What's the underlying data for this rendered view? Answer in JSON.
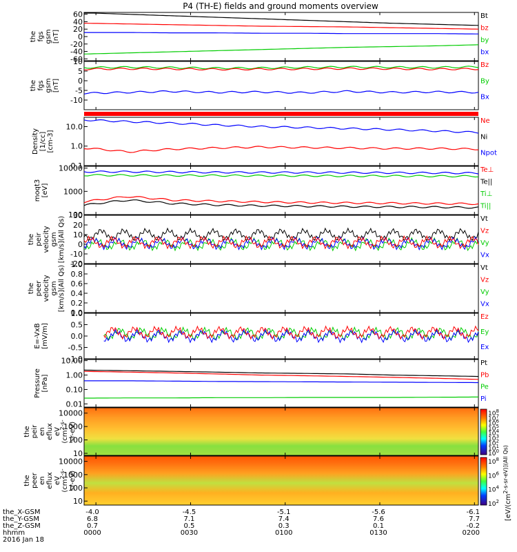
{
  "title": "P4 (TH-E) fields and ground moments overview",
  "colors": {
    "black": "#000000",
    "red": "#ff0000",
    "green": "#00cc00",
    "blue": "#0000ff"
  },
  "chart_data": [
    {
      "type": "line",
      "ylabel": [
        "the",
        "fgs",
        "gsm",
        "[nT]"
      ],
      "yticks": [
        "60",
        "40",
        "20",
        "0",
        "-20",
        "-40",
        "-60"
      ],
      "ylim": [
        -65,
        65
      ],
      "legend": [
        {
          "name": "Bt",
          "color": "black"
        },
        {
          "name": "bz",
          "color": "red"
        },
        {
          "name": "by",
          "color": "green"
        },
        {
          "name": "bx",
          "color": "blue"
        }
      ],
      "series": [
        {
          "name": "Bt",
          "color": "black",
          "values": [
            64,
            60,
            56,
            52,
            48,
            44,
            40,
            36,
            33,
            30
          ]
        },
        {
          "name": "bz",
          "color": "red",
          "values": [
            36,
            34,
            32,
            30,
            28,
            27,
            26,
            24,
            22,
            20
          ]
        },
        {
          "name": "bx",
          "color": "blue",
          "values": [
            11,
            11,
            10,
            10,
            9,
            9,
            8,
            8,
            8,
            7
          ]
        },
        {
          "name": "by",
          "color": "green",
          "values": [
            -47,
            -44,
            -41,
            -38,
            -35,
            -32,
            -29,
            -27,
            -25,
            -22
          ]
        }
      ]
    },
    {
      "type": "line",
      "ylabel": [
        "the",
        "fgs",
        "gsm",
        "[nT]"
      ],
      "yticks": [
        "10",
        "5",
        "0",
        "-5",
        "-10"
      ],
      "ylim": [
        -15,
        10
      ],
      "legend": [
        {
          "name": "Bz",
          "color": "red"
        },
        {
          "name": "By",
          "color": "green"
        },
        {
          "name": "Bx",
          "color": "blue"
        }
      ],
      "series": [
        {
          "name": "By",
          "color": "green",
          "values": [
            6.8,
            7.0,
            6.8,
            6.5,
            6.6,
            6.9,
            7.1,
            7.0,
            6.9,
            7.2
          ]
        },
        {
          "name": "Bz",
          "color": "red",
          "values": [
            6.0,
            6.2,
            6.1,
            5.9,
            6.0,
            6.1,
            6.3,
            6.2,
            6.0,
            6.1
          ]
        },
        {
          "name": "Bx",
          "color": "blue",
          "values": [
            -6.5,
            -6.0,
            -5.5,
            -6.0,
            -5.8,
            -6.2,
            -5.5,
            -6.0,
            -5.8,
            -6.0
          ]
        }
      ]
    },
    {
      "type": "line",
      "ylabel": [
        "Density",
        "[1/cc]",
        "[cm-3]"
      ],
      "yticks": [
        "10.0",
        "1.0",
        "0.1"
      ],
      "scale": "log",
      "ylim": [
        0.1,
        30
      ],
      "legend": [
        {
          "name": "Ne",
          "color": "red"
        },
        {
          "name": "Ni",
          "color": "black"
        },
        {
          "name": "Npot",
          "color": "blue"
        }
      ],
      "series": [
        {
          "name": "Npot",
          "color": "blue",
          "values": [
            22,
            18,
            15,
            12,
            10,
            9,
            8,
            7,
            6,
            5
          ]
        },
        {
          "name": "Ne",
          "color": "red",
          "values": [
            0.8,
            0.5,
            0.7,
            0.8,
            0.9,
            0.85,
            0.8,
            0.75,
            0.75,
            0.7
          ]
        }
      ]
    },
    {
      "type": "line",
      "ylabel": [
        "moqt3",
        "[eV]"
      ],
      "yticks": [
        "10000",
        "1000",
        "100"
      ],
      "scale": "log",
      "ylim": [
        100,
        12000
      ],
      "legend": [
        {
          "name": "Te⊥",
          "color": "red"
        },
        {
          "name": "Te||",
          "color": "black"
        },
        {
          "name": "Ti⊥",
          "color": "green"
        },
        {
          "name": "Ti||",
          "color": "green"
        }
      ],
      "series": [
        {
          "name": "Ti||",
          "color": "blue",
          "values": [
            7000,
            7000,
            6800,
            6600,
            6500,
            6500,
            6400,
            6300,
            6200,
            6100
          ]
        },
        {
          "name": "Ti⊥",
          "color": "green",
          "values": [
            5000,
            4900,
            4800,
            4800,
            4700,
            4700,
            4600,
            4600,
            4500,
            4500
          ]
        },
        {
          "name": "Te⊥",
          "color": "red",
          "values": [
            350,
            600,
            420,
            380,
            350,
            330,
            320,
            310,
            300,
            290
          ]
        },
        {
          "name": "Te||",
          "color": "black",
          "values": [
            250,
            420,
            300,
            260,
            240,
            230,
            220,
            215,
            210,
            200
          ]
        }
      ]
    },
    {
      "type": "line",
      "ylabel": [
        "the",
        "peir",
        "velocity",
        "gsm",
        "[km/s](All Qs)"
      ],
      "yticks": [
        "30",
        "20",
        "10",
        "0",
        "-10",
        "-20"
      ],
      "ylim": [
        -20,
        30
      ],
      "legend": [
        {
          "name": "Vt",
          "color": "black"
        },
        {
          "name": "Vz",
          "color": "red"
        },
        {
          "name": "Vy",
          "color": "green"
        },
        {
          "name": "Vx",
          "color": "blue"
        }
      ],
      "series": [
        {
          "name": "Vt",
          "color": "black",
          "values": [
            10,
            10,
            10,
            10,
            10,
            10,
            10,
            10,
            10,
            10
          ]
        },
        {
          "name": "Vy",
          "color": "green",
          "values": [
            0,
            0,
            0,
            0,
            0,
            0,
            0,
            0,
            0,
            0
          ]
        },
        {
          "name": "Vx",
          "color": "blue",
          "values": [
            1,
            1,
            1,
            1,
            1,
            1,
            1,
            1,
            1,
            1
          ]
        },
        {
          "name": "Vz",
          "color": "red",
          "values": [
            2,
            2,
            2,
            2,
            2,
            2,
            2,
            2,
            2,
            2
          ]
        }
      ]
    },
    {
      "type": "line",
      "ylabel": [
        "the",
        "peer",
        "velocity",
        "gsm",
        "[km/s](All Qs)"
      ],
      "yticks": [
        "1.0",
        "0.8",
        "0.6",
        "0.4",
        "0.2",
        "0.0"
      ],
      "ylim": [
        0,
        1
      ],
      "legend": [
        {
          "name": "Vt",
          "color": "black"
        },
        {
          "name": "Vz",
          "color": "red"
        },
        {
          "name": "Vy",
          "color": "green"
        },
        {
          "name": "Vx",
          "color": "blue"
        }
      ],
      "series": []
    },
    {
      "type": "line",
      "ylabel": [
        "E=-VxB",
        "[mV/m]"
      ],
      "yticks": [
        "1.0",
        "0.5",
        "0.0",
        "-0.5",
        "-1.0"
      ],
      "ylim": [
        -1,
        1
      ],
      "legend": [
        {
          "name": "Ez",
          "color": "red"
        },
        {
          "name": "Ey",
          "color": "green"
        },
        {
          "name": "Ex",
          "color": "blue"
        }
      ],
      "series": [
        {
          "name": "Ey",
          "color": "green",
          "values": [
            0.1,
            0.1,
            0.1,
            0.1,
            0.1,
            0.1,
            0.1,
            0.1,
            0.1,
            0.1
          ]
        },
        {
          "name": "Ex",
          "color": "blue",
          "values": [
            0,
            0,
            0,
            0,
            0,
            0,
            0,
            0,
            0,
            0
          ]
        },
        {
          "name": "Ez",
          "color": "red",
          "values": [
            0.15,
            0.15,
            0.15,
            0.15,
            0.15,
            0.15,
            0.15,
            0.15,
            0.15,
            0.15
          ]
        }
      ]
    },
    {
      "type": "line",
      "ylabel": [
        "Pressure",
        "[nPa]"
      ],
      "yticks": [
        "10.00",
        "1.00",
        "0.10",
        "0.01"
      ],
      "scale": "log",
      "ylim": [
        0.006,
        12
      ],
      "legend": [
        {
          "name": "Pt",
          "color": "black"
        },
        {
          "name": "Pb",
          "color": "red"
        },
        {
          "name": "Pe",
          "color": "green"
        },
        {
          "name": "Pi",
          "color": "blue"
        }
      ],
      "series": [
        {
          "name": "Pt",
          "color": "black",
          "values": [
            2.2,
            2.0,
            1.8,
            1.6,
            1.4,
            1.3,
            1.2,
            1.0,
            0.9,
            0.8
          ]
        },
        {
          "name": "Pb",
          "color": "red",
          "values": [
            1.8,
            1.6,
            1.4,
            1.2,
            1.0,
            0.9,
            0.8,
            0.7,
            0.6,
            0.5
          ]
        },
        {
          "name": "Pi",
          "color": "blue",
          "values": [
            0.4,
            0.4,
            0.38,
            0.36,
            0.35,
            0.34,
            0.33,
            0.32,
            0.31,
            0.3
          ]
        },
        {
          "name": "Pe",
          "color": "green",
          "values": [
            0.025,
            0.026,
            0.026,
            0.027,
            0.027,
            0.028,
            0.028,
            0.028,
            0.029,
            0.03
          ]
        }
      ]
    },
    {
      "type": "heatmap",
      "ylabel": [
        "the",
        "peir",
        "en",
        "eflux",
        "eV",
        "(cm^2-s-",
        "sr-eV)"
      ],
      "yticks": [
        "10000",
        "1000",
        "100",
        "10"
      ],
      "scale": "log",
      "ylim": [
        7,
        25000
      ]
    },
    {
      "type": "heatmap",
      "ylabel": [
        "the",
        "peer",
        "en",
        "eflux",
        "eV",
        "(cm^2-s-",
        "sr-eV)"
      ],
      "yticks": [
        "10000",
        "1000",
        "100",
        "10"
      ],
      "scale": "log",
      "ylim": [
        5,
        25000
      ]
    }
  ],
  "colorbar": {
    "ticks1": [
      "10^8",
      "10^7",
      "10^6",
      "10^5",
      "10^4",
      "10^3",
      "10^2",
      "10^1",
      "10^0"
    ],
    "ticks2": [
      "10^8",
      "10^6",
      "10^4",
      "10^2"
    ],
    "label": "[eV/(cm^2-s-sr-eV)](All Qs)"
  },
  "xaxis": {
    "row_labels": [
      "the_X-GSM",
      "the_Y-GSM",
      "the_Z-GSM",
      "hhmm",
      "2016 Jan 18"
    ],
    "columns": [
      {
        "x": "-4.0",
        "y": "6.8",
        "z": "0.7",
        "t": "0000"
      },
      {
        "x": "-4.5",
        "y": "7.1",
        "z": "0.5",
        "t": "0030"
      },
      {
        "x": "-5.1",
        "y": "7.4",
        "z": "0.3",
        "t": "0100"
      },
      {
        "x": "-5.6",
        "y": "7.6",
        "z": "0.1",
        "t": "0130"
      },
      {
        "x": "-6.1",
        "y": "7.7",
        "z": "-0.2",
        "t": "0200"
      }
    ]
  }
}
